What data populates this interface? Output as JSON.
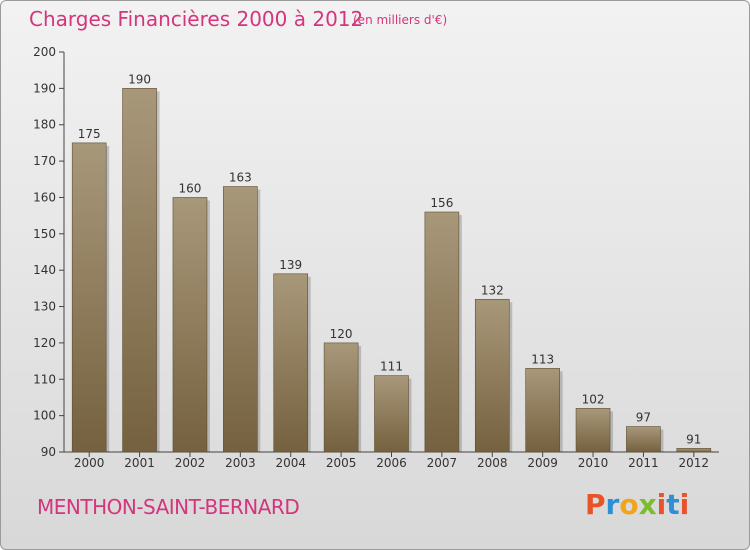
{
  "header": {
    "title": "Charges Financières 2000 à 2012",
    "subtitle": "(en milliers d'€)"
  },
  "footer": {
    "commune": "MENTHON-SAINT-BERNARD",
    "brand": "Proxiti"
  },
  "colors": {
    "title": "#d4357c",
    "bar_light": "#a8987a",
    "bar_dark": "#7a6547",
    "brand_letters": [
      "#e8532a",
      "#2f8fd4",
      "#f2a51c",
      "#7dbb2f",
      "#e8532a",
      "#2f8fd4",
      "#e8532a"
    ]
  },
  "chart_data": {
    "type": "bar",
    "categories": [
      "2000",
      "2001",
      "2002",
      "2003",
      "2004",
      "2005",
      "2006",
      "2007",
      "2008",
      "2009",
      "2010",
      "2011",
      "2012"
    ],
    "values": [
      175,
      190,
      160,
      163,
      139,
      120,
      111,
      156,
      132,
      113,
      102,
      97,
      91
    ],
    "title": "Charges Financières 2000 à 2012",
    "subtitle": "(en milliers d'€)",
    "xlabel": "",
    "ylabel": "",
    "ylim": [
      90,
      200
    ],
    "yticks": [
      90,
      100,
      110,
      120,
      130,
      140,
      150,
      160,
      170,
      180,
      190,
      200
    ],
    "grid": false,
    "data_labels": true
  }
}
